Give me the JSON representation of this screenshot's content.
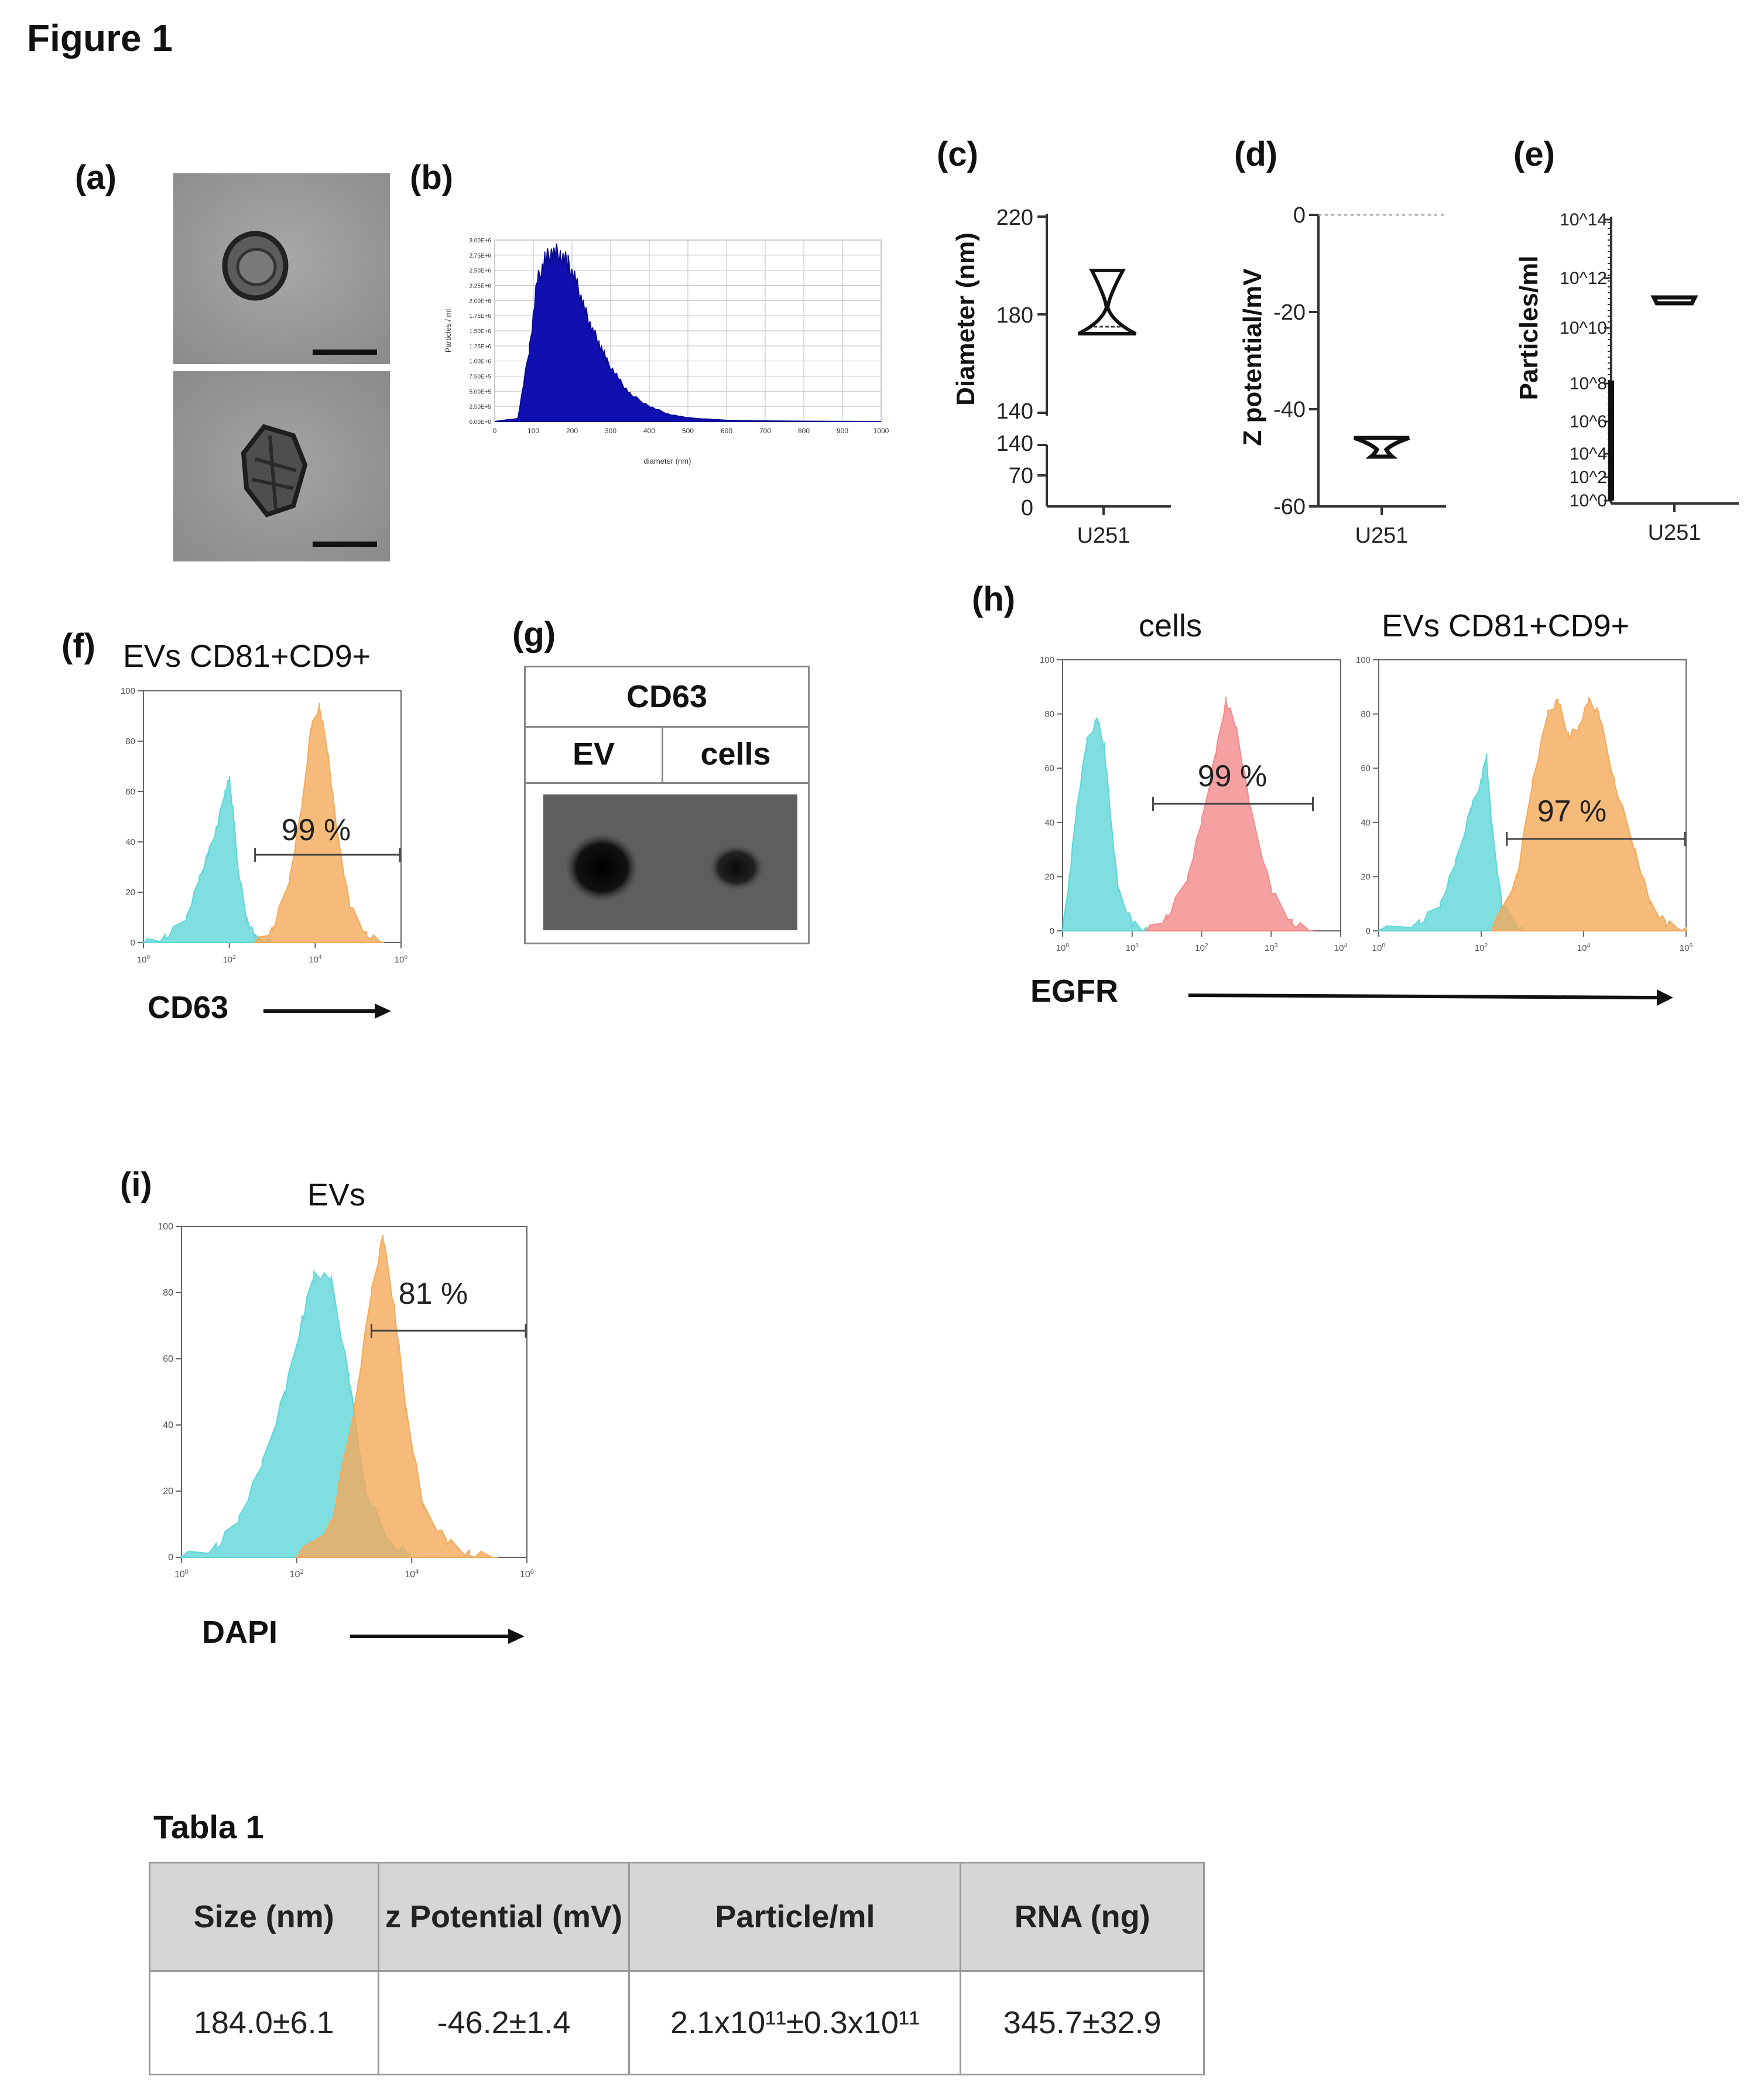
{
  "figure_title": "Figure 1",
  "panels": {
    "a": {
      "letter": "(a)"
    },
    "b": {
      "letter": "(b)",
      "ylabel": "Particles / ml",
      "xlabel": "diameter (nm)"
    },
    "c": {
      "letter": "(c)"
    },
    "d": {
      "letter": "(d)"
    },
    "e": {
      "letter": "(e)"
    },
    "f": {
      "letter": "(f)",
      "title": "EVs CD81+CD9+",
      "percent": "99 %",
      "marker": "CD63"
    },
    "g": {
      "letter": "(g)",
      "header": "CD63",
      "col1": "EV",
      "col2": "cells"
    },
    "h": {
      "letter": "(h)",
      "title_left": "cells",
      "title_right": "EVs CD81+CD9+",
      "percent_left": "99 %",
      "percent_right": "97 %",
      "marker": "EGFR"
    },
    "i": {
      "letter": "(i)",
      "title": "EVs",
      "percent": "81 %",
      "marker": "DAPI"
    }
  },
  "colors": {
    "control": "#5ed6d8",
    "positive_orange": "#f4a95a",
    "positive_red": "#f28a8a",
    "nta_blue": "#1010b0"
  },
  "chart_data": [
    {
      "type": "area",
      "id": "b",
      "xlabel": "diameter (nm)",
      "ylabel": "Particles / ml",
      "xlim": [
        0,
        1000
      ],
      "ylim": [
        0,
        3000000.0
      ],
      "x_ticks": [
        "0",
        "100",
        "200",
        "300",
        "400",
        "500",
        "600",
        "700",
        "800",
        "900",
        "1000"
      ],
      "y_ticks": [
        "0.00E+0",
        "2.50E+5",
        "5.00E+5",
        "7.50E+5",
        "1.00E+6",
        "1.25E+6",
        "1.50E+6",
        "1.75E+6",
        "2.00E+6",
        "2.25E+6",
        "2.50E+6",
        "2.75E+6",
        "3.00E+6"
      ],
      "x": [
        0,
        60,
        90,
        110,
        130,
        150,
        170,
        190,
        210,
        230,
        250,
        270,
        290,
        320,
        350,
        400,
        450,
        500,
        600,
        700,
        800,
        900,
        1000
      ],
      "y": [
        0,
        50000,
        1200000,
        2300000,
        2650000,
        2800000,
        2750000,
        2600000,
        2300000,
        1900000,
        1550000,
        1300000,
        1000000,
        700000,
        450000,
        250000,
        120000,
        60000,
        20000,
        10000,
        5000,
        2000,
        0
      ]
    },
    {
      "type": "violin",
      "id": "c",
      "ylabel": "Diameter (nm)",
      "category": "U251",
      "y_ticks_upper": [
        "220",
        "180",
        "140"
      ],
      "y_ticks_lower": [
        "140",
        "70",
        "0"
      ],
      "upper_ylim": [
        140,
        220
      ],
      "lower_ylim": [
        0,
        140
      ],
      "min": 175,
      "median": 178,
      "max": 198
    },
    {
      "type": "violin",
      "id": "d",
      "ylabel": "Z potential/mV",
      "category": "U251",
      "y_ticks": [
        "0",
        "-20",
        "-40",
        "-60"
      ],
      "ylim": [
        -60,
        0
      ],
      "reference_line": 0,
      "min": -49,
      "median": -47.5,
      "max": -46
    },
    {
      "type": "violin",
      "id": "e",
      "ylabel": "Particles/ml",
      "category": "U251",
      "y_ticks": [
        "10^14",
        "10^12",
        "10^10",
        "10^8",
        "10^6",
        "10^4",
        "10^2",
        "10^0"
      ],
      "scale": "log",
      "value": 210000000000.0
    },
    {
      "type": "area",
      "id": "f",
      "xlabel": "CD63",
      "title": "EVs CD81+CD9+",
      "scale": "log",
      "x_ticks": [
        "10^0",
        "10^2",
        "10^4",
        "10^6"
      ],
      "y_ticks": [
        "0",
        "20",
        "40",
        "60",
        "80",
        "100"
      ],
      "ylim": [
        0,
        100
      ],
      "series": [
        {
          "color": "control",
          "x": [
            0,
            0.5,
            1,
            1.3,
            1.5,
            1.7,
            1.9,
            2.0,
            2.1,
            2.2,
            2.4,
            2.6,
            3.0
          ],
          "y": [
            0,
            2,
            10,
            25,
            35,
            45,
            60,
            65,
            50,
            30,
            10,
            2,
            0
          ]
        },
        {
          "color": "positive_orange",
          "x": [
            2.6,
            3.0,
            3.4,
            3.7,
            3.9,
            4.1,
            4.3,
            4.5,
            4.8,
            5.2,
            5.6
          ],
          "y": [
            0,
            5,
            25,
            55,
            85,
            94,
            75,
            45,
            15,
            3,
            0
          ]
        }
      ],
      "gate": {
        "from": 2.6,
        "to": 6,
        "label": "99 %"
      }
    },
    {
      "type": "area",
      "id": "h_cells",
      "title": "cells",
      "scale": "log",
      "x_ticks": [
        "10^0",
        "10^1",
        "10^2",
        "10^3",
        "10^4"
      ],
      "y_ticks": [
        "0",
        "20",
        "40",
        "60",
        "80",
        "100"
      ],
      "ylim": [
        0,
        100
      ],
      "series": [
        {
          "color": "control",
          "x": [
            0,
            0.1,
            0.2,
            0.35,
            0.5,
            0.6,
            0.7,
            0.8,
            1.0,
            1.2
          ],
          "y": [
            0,
            20,
            45,
            70,
            78,
            68,
            40,
            15,
            3,
            0
          ]
        },
        {
          "color": "positive_red",
          "x": [
            1.2,
            1.5,
            1.8,
            2.0,
            2.2,
            2.35,
            2.5,
            2.7,
            3.0,
            3.3,
            3.6
          ],
          "y": [
            0,
            5,
            20,
            40,
            65,
            85,
            75,
            45,
            15,
            3,
            0
          ]
        }
      ],
      "gate": {
        "from": 1.3,
        "to": 3.6,
        "label": "99 %"
      }
    },
    {
      "type": "area",
      "id": "h_evs",
      "title": "EVs CD81+CD9+",
      "scale": "log",
      "x_ticks": [
        "10^0",
        "10^2",
        "10^4",
        "10^6"
      ],
      "y_ticks": [
        "0",
        "20",
        "40",
        "60",
        "80",
        "100"
      ],
      "ylim": [
        0,
        100
      ],
      "series": [
        {
          "color": "control",
          "x": [
            0,
            0.8,
            1.2,
            1.5,
            1.8,
            2.0,
            2.1,
            2.2,
            2.4,
            2.8
          ],
          "y": [
            0,
            3,
            10,
            25,
            45,
            55,
            65,
            40,
            10,
            0
          ]
        },
        {
          "color": "positive_orange",
          "x": [
            2.2,
            2.7,
            3.0,
            3.3,
            3.5,
            3.7,
            3.9,
            4.1,
            4.3,
            4.6,
            5.0,
            5.3,
            5.6,
            6.0
          ],
          "y": [
            0,
            20,
            55,
            80,
            85,
            72,
            75,
            85,
            80,
            55,
            30,
            10,
            3,
            0
          ]
        }
      ],
      "gate": {
        "from": 2.5,
        "to": 6,
        "label": "97 %"
      }
    },
    {
      "type": "area",
      "id": "i",
      "title": "EVs",
      "xlabel": "DAPI",
      "scale": "log",
      "x_ticks": [
        "10^0",
        "10^2",
        "10^4",
        "10^6"
      ],
      "y_ticks": [
        "0",
        "20",
        "40",
        "60",
        "80",
        "100"
      ],
      "ylim": [
        0,
        100
      ],
      "series": [
        {
          "color": "control",
          "x": [
            0,
            0.6,
            1.0,
            1.4,
            1.8,
            2.1,
            2.3,
            2.6,
            2.9,
            3.2,
            3.6,
            4.0
          ],
          "y": [
            0,
            3,
            12,
            28,
            50,
            72,
            86,
            84,
            55,
            20,
            5,
            0
          ]
        },
        {
          "color": "positive_orange",
          "x": [
            2.0,
            2.6,
            3.0,
            3.3,
            3.5,
            3.7,
            3.9,
            4.2,
            4.6,
            5.0,
            5.5
          ],
          "y": [
            0,
            10,
            45,
            80,
            97,
            75,
            45,
            15,
            5,
            1,
            0
          ]
        }
      ],
      "gate": {
        "from": 3.3,
        "to": 6,
        "label": "81 %"
      }
    }
  ],
  "table": {
    "title": "Tabla 1",
    "headers": [
      "Size (nm)",
      "z Potential (mV)",
      "Particle/ml",
      "RNA (ng)"
    ],
    "row": [
      "184.0±6.1",
      "-46.2±1.4",
      "2.1x10¹¹±0.3x10¹¹",
      "345.7±32.9"
    ]
  }
}
